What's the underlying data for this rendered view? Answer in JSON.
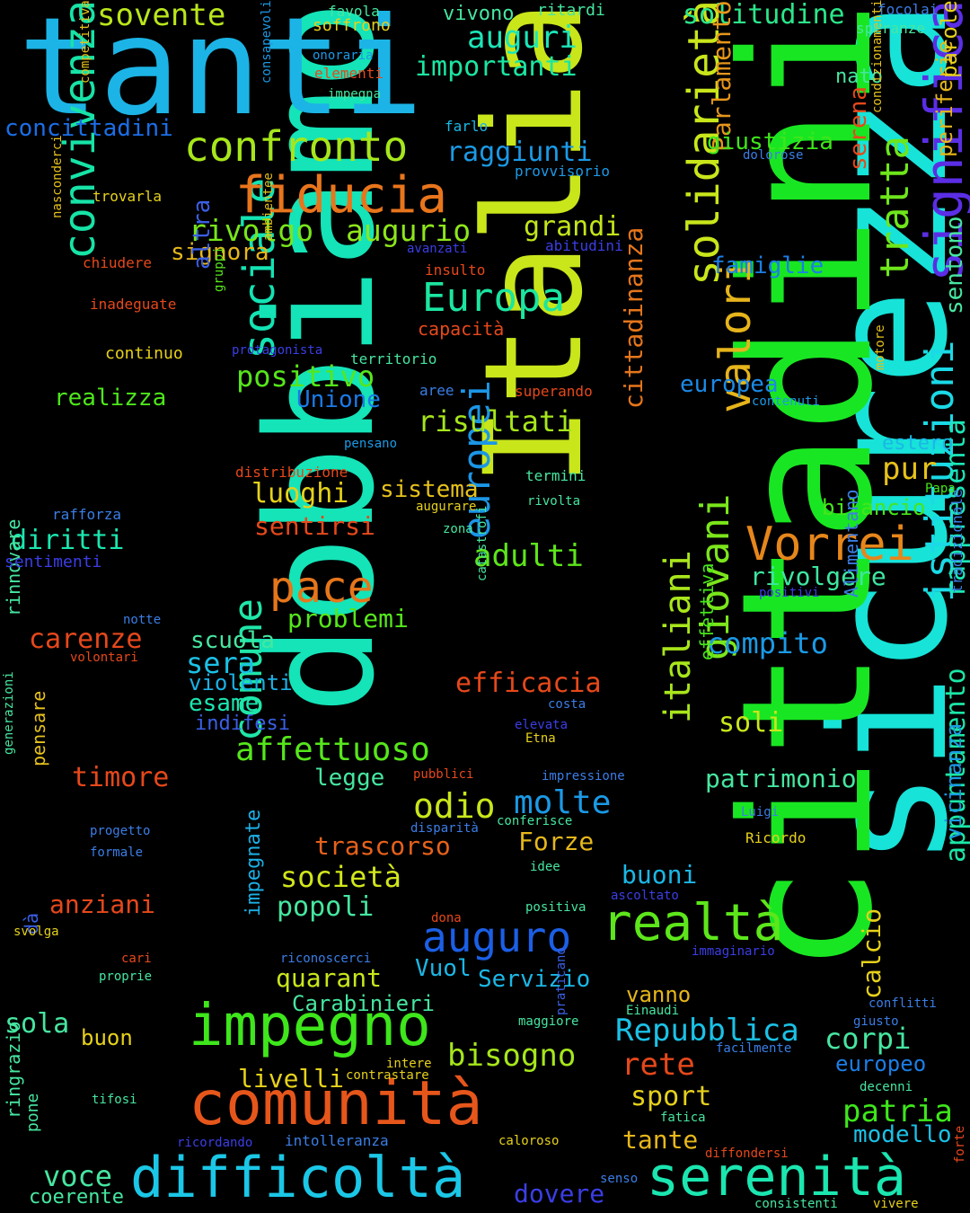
{
  "words": [
    {
      "text": "sicurezza",
      "color": "#17e3d8",
      "vertical": true
    },
    {
      "text": "cittadini",
      "color": "#19e622",
      "vertical": true
    },
    {
      "text": "Italia",
      "color": "#c9e61b",
      "vertical": true
    },
    {
      "text": "dobbiamo",
      "color": "#14e4b8",
      "vertical": true
    },
    {
      "text": "tanti",
      "color": "#1cb4e6",
      "vertical": false
    },
    {
      "text": "convivenza",
      "color": "#17e3a7",
      "vertical": true
    },
    {
      "text": "sociale",
      "color": "#13e3b4",
      "vertical": true
    },
    {
      "text": "comune",
      "color": "#1fe6a8",
      "vertical": true
    },
    {
      "text": "confronto",
      "color": "#a6e61b",
      "vertical": false
    },
    {
      "text": "fiducia",
      "color": "#e8751c",
      "vertical": false
    },
    {
      "text": "rivolgo",
      "color": "#78e61b",
      "vertical": false
    },
    {
      "text": "augurio",
      "color": "#8ee61b",
      "vertical": false
    },
    {
      "text": "solidarietà",
      "color": "#c9e61b",
      "vertical": true
    },
    {
      "text": "solitudine",
      "color": "#2be68a",
      "vertical": false
    },
    {
      "text": "significa",
      "color": "#5b2ee6",
      "vertical": true
    },
    {
      "text": "Europa",
      "color": "#1be6a0",
      "vertical": false
    },
    {
      "text": "Vorrei",
      "color": "#e6861b",
      "vertical": false
    },
    {
      "text": "valori",
      "color": "#e6b41b",
      "vertical": true
    },
    {
      "text": "pace",
      "color": "#e6761b",
      "vertical": false
    },
    {
      "text": "europei",
      "color": "#1b96e6",
      "vertical": true
    },
    {
      "text": "istituzioni",
      "color": "#1bd9e6",
      "vertical": true
    },
    {
      "text": "realtà",
      "color": "#5de61b",
      "vertical": false
    },
    {
      "text": "giovani",
      "color": "#7be61b",
      "vertical": true
    },
    {
      "text": "italiani",
      "color": "#a9e61b",
      "vertical": true
    },
    {
      "text": "impegno",
      "color": "#3ee61b",
      "vertical": false
    },
    {
      "text": "comunità",
      "color": "#e6561b",
      "vertical": false
    },
    {
      "text": "difficoltà",
      "color": "#1bc7e6",
      "vertical": false
    },
    {
      "text": "serenità",
      "color": "#1be6b0",
      "vertical": false
    },
    {
      "text": "auguro",
      "color": "#1b5fe6",
      "vertical": false
    },
    {
      "text": "tratta",
      "color": "#6ee61b",
      "vertical": true
    },
    {
      "text": "Parlamento",
      "color": "#e6961b",
      "vertical": true
    },
    {
      "text": "rappresenta",
      "color": "#1be6b8",
      "vertical": true
    },
    {
      "text": "appuntamento",
      "color": "#1be6a6",
      "vertical": true
    },
    {
      "text": "sovente",
      "color": "#b9e61b",
      "vertical": false
    },
    {
      "text": "auguri",
      "color": "#1be6b8",
      "vertical": false
    },
    {
      "text": "importanti",
      "color": "#1be6a2",
      "vertical": false
    },
    {
      "text": "concittadini",
      "color": "#1b6ee6",
      "vertical": false
    },
    {
      "text": "raggiunti",
      "color": "#1b9ae6",
      "vertical": false
    },
    {
      "text": "giustizia",
      "color": "#3ee61b",
      "vertical": false
    },
    {
      "text": "grandi",
      "color": "#c2e61b",
      "vertical": false
    },
    {
      "text": "signora",
      "color": "#e6b71b",
      "vertical": false
    },
    {
      "text": "famiglie",
      "color": "#1b7ee6",
      "vertical": false
    },
    {
      "text": "positivo",
      "color": "#56e61b",
      "vertical": false
    },
    {
      "text": "Unione",
      "color": "#1b7ae6",
      "vertical": false
    },
    {
      "text": "realizza",
      "color": "#4ee61b",
      "vertical": false
    },
    {
      "text": "risultati",
      "color": "#a6e61b",
      "vertical": false
    },
    {
      "text": "europea",
      "color": "#1b8ae6",
      "vertical": false
    },
    {
      "text": "luoghi",
      "color": "#e6d11b",
      "vertical": false
    },
    {
      "text": "sistema",
      "color": "#e6c11b",
      "vertical": false
    },
    {
      "text": "sentirsi",
      "color": "#e6481b",
      "vertical": false
    },
    {
      "text": "diritti",
      "color": "#1be6b0",
      "vertical": false
    },
    {
      "text": "adulti",
      "color": "#5de61b",
      "vertical": false
    },
    {
      "text": "cittadinanza",
      "color": "#e6761b",
      "vertical": true
    },
    {
      "text": "pur",
      "color": "#e6c11b",
      "vertical": false
    },
    {
      "text": "estero",
      "color": "#1bb7e6",
      "vertical": false
    },
    {
      "text": "bilancio",
      "color": "#46e61b",
      "vertical": false
    },
    {
      "text": "rivolgere",
      "color": "#3ee6a0",
      "vertical": false
    },
    {
      "text": "problemi",
      "color": "#56e61b",
      "vertical": false
    },
    {
      "text": "carenze",
      "color": "#e6481b",
      "vertical": false
    },
    {
      "text": "compito",
      "color": "#1b9ae6",
      "vertical": false
    },
    {
      "text": "scuola",
      "color": "#46e6a0",
      "vertical": false
    },
    {
      "text": "sera",
      "color": "#1bc1e6",
      "vertical": false
    },
    {
      "text": "violenti",
      "color": "#1bb0e6",
      "vertical": false
    },
    {
      "text": "esame",
      "color": "#1be6b0",
      "vertical": false
    },
    {
      "text": "indifesi",
      "color": "#3b5fe6",
      "vertical": false
    },
    {
      "text": "efficacia",
      "color": "#e6481b",
      "vertical": false
    },
    {
      "text": "soli",
      "color": "#c9e61b",
      "vertical": false
    },
    {
      "text": "affettuoso",
      "color": "#56e61b",
      "vertical": false
    },
    {
      "text": "timore",
      "color": "#e6481b",
      "vertical": false
    },
    {
      "text": "legge",
      "color": "#46e6a0",
      "vertical": false
    },
    {
      "text": "odio",
      "color": "#c9e61b",
      "vertical": false
    },
    {
      "text": "molte",
      "color": "#1b9ae6",
      "vertical": false
    },
    {
      "text": "patrimonio",
      "color": "#46e6a0",
      "vertical": false
    },
    {
      "text": "impegnate",
      "color": "#1bb0e6",
      "vertical": true
    },
    {
      "text": "trascorso",
      "color": "#e6611b",
      "vertical": false
    },
    {
      "text": "Forze",
      "color": "#e6b71b",
      "vertical": false
    },
    {
      "text": "società",
      "color": "#d1e61b",
      "vertical": false
    },
    {
      "text": "popoli",
      "color": "#46e6a0",
      "vertical": false
    },
    {
      "text": "buoni",
      "color": "#1bb7e6",
      "vertical": false
    },
    {
      "text": "anziani",
      "color": "#e6481b",
      "vertical": false
    },
    {
      "text": "calcio",
      "color": "#e6d11b",
      "vertical": true
    },
    {
      "text": "quarant",
      "color": "#c9e61b",
      "vertical": false
    },
    {
      "text": "Vuol",
      "color": "#1bb7e6",
      "vertical": false
    },
    {
      "text": "Servizio",
      "color": "#1bb7e6",
      "vertical": false
    },
    {
      "text": "Carabinieri",
      "color": "#46e6a0",
      "vertical": false
    },
    {
      "text": "vanno",
      "color": "#e6b71b",
      "vertical": false
    },
    {
      "text": "sola",
      "color": "#46e6a0",
      "vertical": false
    },
    {
      "text": "buon",
      "color": "#e6d11b",
      "vertical": false
    },
    {
      "text": "bisogno",
      "color": "#a6e61b",
      "vertical": false
    },
    {
      "text": "Repubblica",
      "color": "#1bc1e6",
      "vertical": false
    },
    {
      "text": "corpi",
      "color": "#46e6a0",
      "vertical": false
    },
    {
      "text": "rete",
      "color": "#e6481b",
      "vertical": false
    },
    {
      "text": "livelli",
      "color": "#e6d11b",
      "vertical": false
    },
    {
      "text": "sport",
      "color": "#e6d11b",
      "vertical": false
    },
    {
      "text": "patria",
      "color": "#3ee61b",
      "vertical": false
    },
    {
      "text": "tante",
      "color": "#e6b71b",
      "vertical": false
    },
    {
      "text": "modello",
      "color": "#1bc1e6",
      "vertical": false
    },
    {
      "text": "europeo",
      "color": "#1b7ee6",
      "vertical": false
    },
    {
      "text": "voce",
      "color": "#46e6a0",
      "vertical": false
    },
    {
      "text": "dovere",
      "color": "#3b3ee6",
      "vertical": false
    },
    {
      "text": "coerente",
      "color": "#46e6a0",
      "vertical": false
    },
    {
      "text": "vicinanza",
      "color": "#1b9ae6",
      "vertical": true
    },
    {
      "text": "sentono",
      "color": "#46e6a0",
      "vertical": true
    },
    {
      "text": "serena",
      "color": "#e6481b",
      "vertical": true
    },
    {
      "text": "periferie",
      "color": "#e6b71b",
      "vertical": true
    },
    {
      "text": "parole",
      "color": "#e6d11b",
      "vertical": true
    },
    {
      "text": "nato",
      "color": "#46e6a0",
      "vertical": false
    },
    {
      "text": "altra",
      "color": "#3b5fe6",
      "vertical": true
    },
    {
      "text": "effettiva",
      "color": "#46e61b",
      "vertical": true
    },
    {
      "text": "Alimentano",
      "color": "#3b7ee6",
      "vertical": true
    },
    {
      "text": "tradizionale",
      "color": "#3b7ee6",
      "vertical": true
    },
    {
      "text": "rinnovare",
      "color": "#46e6a0",
      "vertical": true
    },
    {
      "text": "pensare",
      "color": "#e6c11b",
      "vertical": true
    },
    {
      "text": "generazioni",
      "color": "#46e6a0",
      "vertical": true
    },
    {
      "text": "ringrazio",
      "color": "#46e6a0",
      "vertical": true
    },
    {
      "text": "pone",
      "color": "#46e6a0",
      "vertical": true
    },
    {
      "text": "dà",
      "color": "#3b5fe6",
      "vertical": true
    },
    {
      "text": "nasconderci",
      "color": "#e6c11b",
      "vertical": true
    },
    {
      "text": "competitiva",
      "color": "#e6c11b",
      "vertical": true
    },
    {
      "text": "consapevoli",
      "color": "#1b9ae6",
      "vertical": true
    },
    {
      "text": "gruppi",
      "color": "#56e61b",
      "vertical": true
    },
    {
      "text": "ambientee",
      "color": "#e6c11b",
      "vertical": true
    },
    {
      "text": "condizionamenti",
      "color": "#e6c11b",
      "vertical": true
    },
    {
      "text": "motore",
      "color": "#e6c11b",
      "vertical": true
    },
    {
      "text": "catastrofi",
      "color": "#46e6a0",
      "vertical": true
    },
    {
      "text": "praticano",
      "color": "#3b5fe6",
      "vertical": true
    },
    {
      "text": "forte",
      "color": "#e6481b",
      "vertical": true
    },
    {
      "text": "favola",
      "color": "#46e6a0",
      "vertical": false
    },
    {
      "text": "soffrono",
      "color": "#e6d11b",
      "vertical": false
    },
    {
      "text": "vivono",
      "color": "#46e6a0",
      "vertical": false
    },
    {
      "text": "ritardi",
      "color": "#46e6a0",
      "vertical": false
    },
    {
      "text": "focolai",
      "color": "#3b7ee6",
      "vertical": false
    },
    {
      "text": "speranze",
      "color": "#46e6a0",
      "vertical": false
    },
    {
      "text": "onoraria",
      "color": "#1b9ae6",
      "vertical": false
    },
    {
      "text": "elementi",
      "color": "#e6481b",
      "vertical": false
    },
    {
      "text": "impegna",
      "color": "#46e6a0",
      "vertical": false
    },
    {
      "text": "farlo",
      "color": "#1bb7e6",
      "vertical": false
    },
    {
      "text": "provvisorio",
      "color": "#1b9ae6",
      "vertical": false
    },
    {
      "text": "dolorose",
      "color": "#3b7ee6",
      "vertical": false
    },
    {
      "text": "trovarla",
      "color": "#e6d11b",
      "vertical": false
    },
    {
      "text": "abitudini",
      "color": "#3b3ee6",
      "vertical": false
    },
    {
      "text": "chiudere",
      "color": "#e6481b",
      "vertical": false
    },
    {
      "text": "avanzati",
      "color": "#3b3ee6",
      "vertical": false
    },
    {
      "text": "insulto",
      "color": "#e6481b",
      "vertical": false
    },
    {
      "text": "inadeguate",
      "color": "#e6481b",
      "vertical": false
    },
    {
      "text": "capacità",
      "color": "#e6481b",
      "vertical": false
    },
    {
      "text": "continuo",
      "color": "#e6d11b",
      "vertical": false
    },
    {
      "text": "protagonista",
      "color": "#3b3ee6",
      "vertical": false
    },
    {
      "text": "territorio",
      "color": "#46e6a0",
      "vertical": false
    },
    {
      "text": "aree",
      "color": "#3b7ee6",
      "vertical": false
    },
    {
      "text": "superando",
      "color": "#e6481b",
      "vertical": false
    },
    {
      "text": "contenuti",
      "color": "#1b9ae6",
      "vertical": false
    },
    {
      "text": "pensano",
      "color": "#1b9ae6",
      "vertical": false
    },
    {
      "text": "distribuzione",
      "color": "#e6481b",
      "vertical": false
    },
    {
      "text": "termini",
      "color": "#46e6a0",
      "vertical": false
    },
    {
      "text": "rivolta",
      "color": "#46e6a0",
      "vertical": false
    },
    {
      "text": "augurare",
      "color": "#e6d11b",
      "vertical": false
    },
    {
      "text": "Papa",
      "color": "#46e61b",
      "vertical": false
    },
    {
      "text": "rafforza",
      "color": "#3b7ee6",
      "vertical": false
    },
    {
      "text": "zona",
      "color": "#46e6a0",
      "vertical": false
    },
    {
      "text": "sentimenti",
      "color": "#3b3ee6",
      "vertical": false
    },
    {
      "text": "positivi",
      "color": "#3b3ee6",
      "vertical": false
    },
    {
      "text": "notte",
      "color": "#3b7ee6",
      "vertical": false
    },
    {
      "text": "volontari",
      "color": "#e6481b",
      "vertical": false
    },
    {
      "text": "costa",
      "color": "#3b7ee6",
      "vertical": false
    },
    {
      "text": "elevata",
      "color": "#3b3ee6",
      "vertical": false
    },
    {
      "text": "Etna",
      "color": "#e6d11b",
      "vertical": false
    },
    {
      "text": "pubblici",
      "color": "#e6481b",
      "vertical": false
    },
    {
      "text": "impressione",
      "color": "#3b7ee6",
      "vertical": false
    },
    {
      "text": "disparità",
      "color": "#3b7ee6",
      "vertical": false
    },
    {
      "text": "conferisce",
      "color": "#46e6a0",
      "vertical": false
    },
    {
      "text": "Luigi",
      "color": "#3b7ee6",
      "vertical": false
    },
    {
      "text": "progetto",
      "color": "#3b7ee6",
      "vertical": false
    },
    {
      "text": "formale",
      "color": "#3b7ee6",
      "vertical": false
    },
    {
      "text": "Ricordo",
      "color": "#e6d11b",
      "vertical": false
    },
    {
      "text": "idee",
      "color": "#46e6a0",
      "vertical": false
    },
    {
      "text": "ascoltato",
      "color": "#3b3ee6",
      "vertical": false
    },
    {
      "text": "svolga",
      "color": "#e6d11b",
      "vertical": false
    },
    {
      "text": "dona",
      "color": "#e6481b",
      "vertical": false
    },
    {
      "text": "positiva",
      "color": "#46e6a0",
      "vertical": false
    },
    {
      "text": "riconoscerci",
      "color": "#3b7ee6",
      "vertical": false
    },
    {
      "text": "immaginario",
      "color": "#3b3ee6",
      "vertical": false
    },
    {
      "text": "cari",
      "color": "#e6481b",
      "vertical": false
    },
    {
      "text": "proprie",
      "color": "#46e6a0",
      "vertical": false
    },
    {
      "text": "maggiore",
      "color": "#46e6a0",
      "vertical": false
    },
    {
      "text": "Einaudi",
      "color": "#46e6a0",
      "vertical": false
    },
    {
      "text": "conflitti",
      "color": "#3b7ee6",
      "vertical": false
    },
    {
      "text": "giusto",
      "color": "#3b7ee6",
      "vertical": false
    },
    {
      "text": "facilmente",
      "color": "#3b7ee6",
      "vertical": false
    },
    {
      "text": "intere",
      "color": "#e6d11b",
      "vertical": false
    },
    {
      "text": "contrastare",
      "color": "#e6d11b",
      "vertical": false
    },
    {
      "text": "tifosi",
      "color": "#46e6a0",
      "vertical": false
    },
    {
      "text": "decenni",
      "color": "#46e6a0",
      "vertical": false
    },
    {
      "text": "fatica",
      "color": "#46e6a0",
      "vertical": false
    },
    {
      "text": "ricordando",
      "color": "#3b3ee6",
      "vertical": false
    },
    {
      "text": "intolleranza",
      "color": "#3b7ee6",
      "vertical": false
    },
    {
      "text": "caloroso",
      "color": "#e6d11b",
      "vertical": false
    },
    {
      "text": "diffondersi",
      "color": "#e6481b",
      "vertical": false
    },
    {
      "text": "senso",
      "color": "#3b7ee6",
      "vertical": false
    },
    {
      "text": "consistenti",
      "color": "#46e6a0",
      "vertical": false
    },
    {
      "text": "vivere",
      "color": "#e6d11b",
      "vertical": false
    }
  ]
}
